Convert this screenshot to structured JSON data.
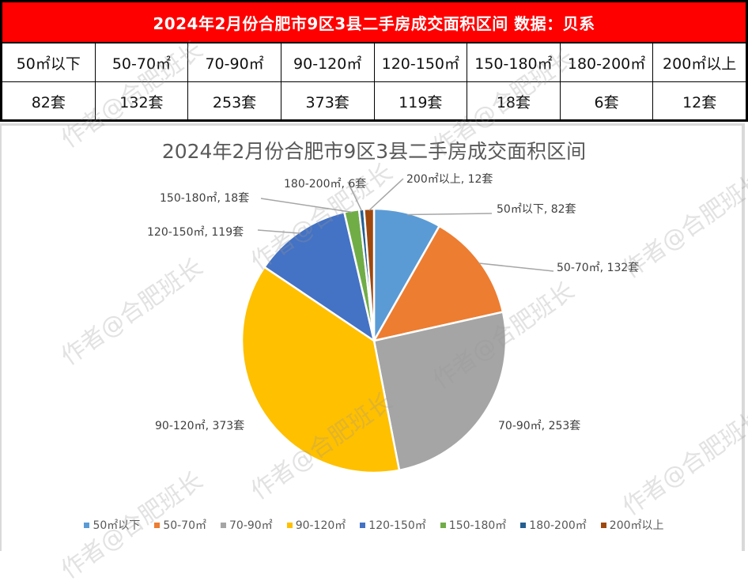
{
  "table": {
    "title": "2024年2月份合肥市9区3县二手房成交面积区间 数据：贝系",
    "headers": [
      "50㎡以下",
      "50-70㎡",
      "70-90㎡",
      "90-120㎡",
      "120-150㎡",
      "150-180㎡",
      "180-200㎡",
      "200㎡以上"
    ],
    "values": [
      "82套",
      "132套",
      "253套",
      "373套",
      "119套",
      "18套",
      "6套",
      "12套"
    ]
  },
  "watermark": "作者@合肥班长",
  "chart_data": {
    "type": "pie",
    "title": "2024年2月份合肥市9区3县二手房成交面积区间",
    "categories": [
      "50㎡以下",
      "50-70㎡",
      "70-90㎡",
      "90-120㎡",
      "120-150㎡",
      "150-180㎡",
      "180-200㎡",
      "200㎡以上"
    ],
    "values": [
      82,
      132,
      253,
      373,
      119,
      18,
      6,
      12
    ],
    "unit": "套",
    "colors": [
      "#5b9bd5",
      "#ed7d31",
      "#a5a5a5",
      "#ffc000",
      "#4472c4",
      "#70ad47",
      "#255e91",
      "#9e480e"
    ],
    "data_labels": [
      "50㎡以下, 82套",
      "50-70㎡, 132套",
      "70-90㎡, 253套",
      "90-120㎡, 373套",
      "120-150㎡, 119套",
      "150-180㎡, 18套",
      "180-200㎡, 6套",
      "200㎡以上, 12套"
    ],
    "legend_position": "bottom"
  }
}
